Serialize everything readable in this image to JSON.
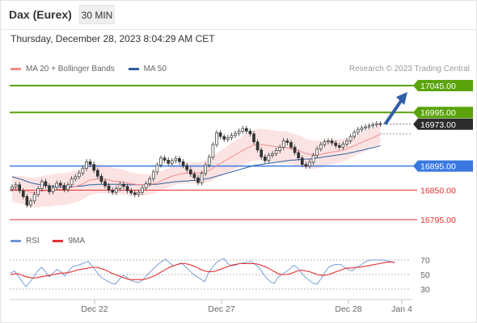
{
  "header": {
    "instrument": "Dax (Eurex)",
    "interval": "30 MIN",
    "datetime": "Thursday, December 28, 2023 8:04:29 AM CET",
    "credit": "Research © 2023 Trading Central"
  },
  "legend": {
    "ma20_label": "MA 20 + Bollinger Bands",
    "ma20_color": "#f08c8c",
    "ma50_label": "MA 50",
    "ma50_color": "#2e5e9e",
    "rsi_label": "RSI",
    "rsi_color": "#6f95d6",
    "rsi_ma_label": "9MA",
    "rsi_ma_color": "#e53030"
  },
  "chart_data": [
    {
      "type": "candlestick",
      "title": "",
      "ylim": [
        16780,
        17060
      ],
      "x_ticks": [
        "Dec 22",
        "Dec 27",
        "Dec 28",
        "Jan 4"
      ],
      "levels": [
        {
          "label": "17045.00",
          "value": 17045,
          "style": "resistance",
          "color": "#5aa30c"
        },
        {
          "label": "16995.00",
          "value": 16995,
          "style": "resistance",
          "color": "#5aa30c"
        },
        {
          "label": "16973.00",
          "value": 16973,
          "style": "last-price",
          "color": "#2b2b2b"
        },
        {
          "label": "16895.00",
          "value": 16895,
          "style": "pivot",
          "color": "#3a78e0"
        },
        {
          "label": "16850.00",
          "value": 16850,
          "style": "support",
          "color": "#e0302f"
        },
        {
          "label": "16795.00",
          "value": 16795,
          "style": "support",
          "color": "#e0302f"
        }
      ],
      "target_arrow": {
        "from": 16973,
        "to": 17045
      },
      "close": [
        16856,
        16860,
        16849,
        16838,
        16822,
        16830,
        16842,
        16853,
        16866,
        16858,
        16847,
        16855,
        16863,
        16859,
        16851,
        16860,
        16871,
        16875,
        16882,
        16891,
        16903,
        16898,
        16887,
        16876,
        16866,
        16858,
        16850,
        16846,
        16853,
        16861,
        16857,
        16849,
        16845,
        16842,
        16846,
        16854,
        16862,
        16871,
        16884,
        16897,
        16910,
        16906,
        16900,
        16905,
        16909,
        16903,
        16896,
        16888,
        16880,
        16873,
        16864,
        16881,
        16897,
        16912,
        16935,
        16957,
        16950,
        16945,
        16948,
        16952,
        16956,
        16960,
        16965,
        16960,
        16955,
        16940,
        16925,
        16912,
        16905,
        16915,
        16918,
        16924,
        16930,
        16942,
        16939,
        16930,
        16920,
        16910,
        16898,
        16895,
        16902,
        16915,
        16927,
        16935,
        16940,
        16942,
        16938,
        16933,
        16930,
        16936,
        16942,
        16950,
        16958,
        16963,
        16966,
        16968,
        16970,
        16972,
        16974,
        16973
      ],
      "ma20": [
        16852,
        16852,
        16851,
        16850,
        16848,
        16846,
        16846,
        16846,
        16848,
        16849,
        16849,
        16850,
        16851,
        16852,
        16852,
        16853,
        16855,
        16857,
        16859,
        16862,
        16866,
        16869,
        16870,
        16871,
        16871,
        16870,
        16869,
        16867,
        16866,
        16866,
        16865,
        16863,
        16862,
        16861,
        16860,
        16860,
        16860,
        16861,
        16862,
        16864,
        16867,
        16870,
        16873,
        16876,
        16878,
        16880,
        16881,
        16882,
        16882,
        16882,
        16882,
        16883,
        16885,
        16887,
        16891,
        16896,
        16900,
        16904,
        16908,
        16912,
        16916,
        16920,
        16924,
        16928,
        16931,
        16934,
        16935,
        16935,
        16934,
        16933,
        16932,
        16931,
        16930,
        16930,
        16929,
        16928,
        16926,
        16924,
        16921,
        16918,
        16917,
        16916,
        16916,
        16917,
        16918,
        16920,
        16921,
        16922,
        16923,
        16925,
        16927,
        16930,
        16933,
        16936,
        16939,
        16942,
        16945,
        16948,
        16951,
        16954
      ],
      "ma50": [
        16875,
        16873,
        16871,
        16869,
        16866,
        16864,
        16862,
        16861,
        16860,
        16859,
        16858,
        16857,
        16857,
        16856,
        16856,
        16856,
        16856,
        16857,
        16857,
        16858,
        16859,
        16860,
        16860,
        16861,
        16861,
        16861,
        16861,
        16861,
        16861,
        16861,
        16861,
        16860,
        16860,
        16860,
        16860,
        16860,
        16860,
        16860,
        16861,
        16861,
        16862,
        16863,
        16864,
        16865,
        16866,
        16866,
        16867,
        16867,
        16868,
        16868,
        16869,
        16870,
        16871,
        16872,
        16874,
        16876,
        16878,
        16880,
        16882,
        16884,
        16886,
        16888,
        16890,
        16892,
        16894,
        16896,
        16897,
        16898,
        16899,
        16900,
        16901,
        16902,
        16903,
        16904,
        16905,
        16906,
        16906,
        16907,
        16907,
        16908,
        16908,
        16909,
        16910,
        16911,
        16912,
        16913,
        16914,
        16915,
        16916,
        16917,
        16918,
        16920,
        16921,
        16923,
        16924,
        16926,
        16928,
        16929,
        16931,
        16933
      ]
    },
    {
      "type": "line",
      "title": "",
      "ylim": [
        20,
        80
      ],
      "y_ticks": [
        70,
        50,
        30
      ],
      "series": [
        {
          "name": "RSI",
          "values": [
            52,
            55,
            48,
            40,
            33,
            40,
            47,
            55,
            60,
            54,
            47,
            52,
            57,
            54,
            48,
            55,
            61,
            62,
            64,
            66,
            68,
            62,
            55,
            48,
            44,
            41,
            38,
            37,
            43,
            49,
            46,
            42,
            40,
            39,
            42,
            48,
            54,
            59,
            64,
            68,
            71,
            66,
            62,
            64,
            66,
            61,
            56,
            51,
            47,
            44,
            40,
            52,
            60,
            66,
            70,
            72,
            65,
            62,
            63,
            65,
            66,
            67,
            68,
            64,
            60,
            52,
            45,
            40,
            38,
            47,
            50,
            54,
            58,
            63,
            59,
            52,
            46,
            42,
            38,
            37,
            44,
            53,
            60,
            63,
            64,
            64,
            60,
            57,
            55,
            59,
            62,
            66,
            69,
            70,
            70,
            70,
            70,
            69,
            68,
            66
          ]
        },
        {
          "name": "9MA",
          "values": [
            50,
            51,
            51,
            49,
            47,
            46,
            45,
            46,
            47,
            48,
            49,
            50,
            51,
            52,
            52,
            53,
            54,
            56,
            57,
            58,
            59,
            60,
            60,
            59,
            57,
            55,
            52,
            50,
            48,
            46,
            44,
            43,
            43,
            43,
            43,
            44,
            46,
            48,
            51,
            54,
            57,
            60,
            62,
            64,
            65,
            65,
            64,
            62,
            60,
            57,
            55,
            54,
            54,
            55,
            57,
            59,
            61,
            63,
            64,
            65,
            65,
            65,
            65,
            65,
            64,
            62,
            60,
            57,
            54,
            51,
            50,
            50,
            51,
            53,
            55,
            56,
            55,
            54,
            52,
            50,
            49,
            49,
            50,
            52,
            54,
            56,
            58,
            59,
            59,
            60,
            60,
            61,
            62,
            63,
            64,
            65,
            66,
            67,
            67,
            67
          ]
        }
      ]
    }
  ]
}
